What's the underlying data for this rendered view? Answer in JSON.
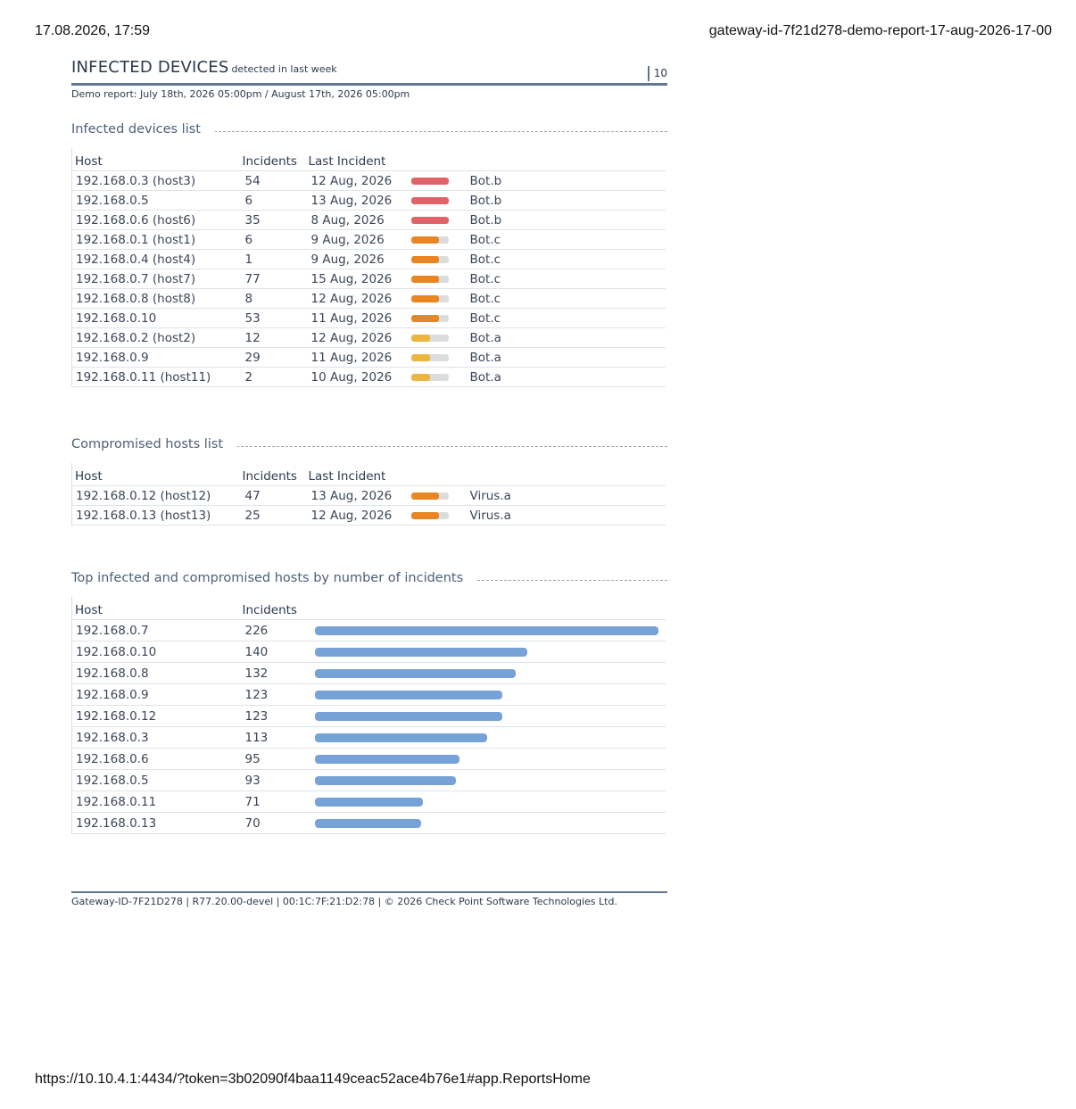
{
  "print_header": {
    "datetime": "17.08.2026, 17:59",
    "doc_title": "gateway-id-7f21d278-demo-report-17-aug-2026-17-00"
  },
  "print_footer": {
    "url": "https://10.10.4.1:4434/?token=3b02090f4baa1149ceac52ace4b76e1#app.ReportsHome"
  },
  "report": {
    "title": "INFECTED DEVICES",
    "title_suffix": "detected in last week",
    "page_number": "10",
    "subtitle": "Demo report: July 18th, 2026 05:00pm / August 17th, 2026 05:00pm"
  },
  "infected_list": {
    "title": "Infected devices list",
    "columns": [
      "Host",
      "Incidents",
      "Last Incident"
    ],
    "rows": [
      {
        "host": "192.168.0.3 (host3)",
        "incidents": "54",
        "last": "12 Aug, 2026",
        "severity": "high",
        "level": 1.0,
        "malware": "Bot.b"
      },
      {
        "host": "192.168.0.5",
        "incidents": "6",
        "last": "13 Aug, 2026",
        "severity": "high",
        "level": 1.0,
        "malware": "Bot.b"
      },
      {
        "host": "192.168.0.6 (host6)",
        "incidents": "35",
        "last": "8 Aug, 2026",
        "severity": "high",
        "level": 1.0,
        "malware": "Bot.b"
      },
      {
        "host": "192.168.0.1 (host1)",
        "incidents": "6",
        "last": "9 Aug, 2026",
        "severity": "medium",
        "level": 0.75,
        "malware": "Bot.c"
      },
      {
        "host": "192.168.0.4 (host4)",
        "incidents": "1",
        "last": "9 Aug, 2026",
        "severity": "medium",
        "level": 0.75,
        "malware": "Bot.c"
      },
      {
        "host": "192.168.0.7 (host7)",
        "incidents": "77",
        "last": "15 Aug, 2026",
        "severity": "medium",
        "level": 0.75,
        "malware": "Bot.c"
      },
      {
        "host": "192.168.0.8 (host8)",
        "incidents": "8",
        "last": "12 Aug, 2026",
        "severity": "medium",
        "level": 0.75,
        "malware": "Bot.c"
      },
      {
        "host": "192.168.0.10",
        "incidents": "53",
        "last": "11 Aug, 2026",
        "severity": "medium",
        "level": 0.75,
        "malware": "Bot.c"
      },
      {
        "host": "192.168.0.2 (host2)",
        "incidents": "12",
        "last": "12 Aug, 2026",
        "severity": "low",
        "level": 0.5,
        "malware": "Bot.a"
      },
      {
        "host": "192.168.0.9",
        "incidents": "29",
        "last": "11 Aug, 2026",
        "severity": "low",
        "level": 0.5,
        "malware": "Bot.a"
      },
      {
        "host": "192.168.0.11 (host11)",
        "incidents": "2",
        "last": "10 Aug, 2026",
        "severity": "low",
        "level": 0.5,
        "malware": "Bot.a"
      }
    ]
  },
  "compromised_list": {
    "title": "Compromised hosts list",
    "columns": [
      "Host",
      "Incidents",
      "Last Incident"
    ],
    "rows": [
      {
        "host": "192.168.0.12 (host12)",
        "incidents": "47",
        "last": "13 Aug, 2026",
        "severity": "medium",
        "level": 0.75,
        "malware": "Virus.a"
      },
      {
        "host": "192.168.0.13 (host13)",
        "incidents": "25",
        "last": "12 Aug, 2026",
        "severity": "medium",
        "level": 0.75,
        "malware": "Virus.a"
      }
    ]
  },
  "colors": {
    "severity_high": "#e06367",
    "severity_medium": "#e98522",
    "severity_low": "#ecb540",
    "bar": "#77a2d8",
    "rule": "#5f7896"
  },
  "top_hosts": {
    "title": "Top infected and compromised hosts by number of incidents",
    "columns": [
      "Host",
      "Incidents"
    ]
  },
  "chart_data": {
    "type": "bar",
    "orientation": "horizontal",
    "categories": [
      "192.168.0.7",
      "192.168.0.10",
      "192.168.0.8",
      "192.168.0.9",
      "192.168.0.12",
      "192.168.0.3",
      "192.168.0.6",
      "192.168.0.5",
      "192.168.0.11",
      "192.168.0.13"
    ],
    "values": [
      226,
      140,
      132,
      123,
      123,
      113,
      95,
      93,
      71,
      70
    ],
    "xlim": [
      0,
      226
    ],
    "grid": false,
    "legend": "none"
  },
  "report_footer": {
    "text": "Gateway-ID-7F21D278 | R77.20.00-devel | 00:1C:7F:21:D2:78 | © 2026 Check Point Software Technologies Ltd."
  }
}
